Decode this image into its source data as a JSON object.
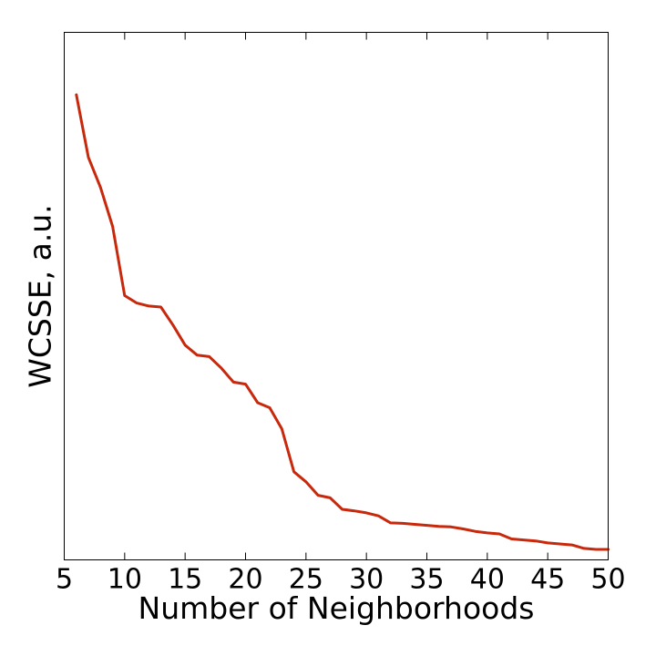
{
  "chart_data": {
    "type": "line",
    "title": "",
    "xlabel": "Number of Neighborhoods",
    "ylabel": "WCSSE, a.u.",
    "xlim": [
      5,
      50
    ],
    "ylim": [
      0,
      1
    ],
    "x_ticks": [
      5,
      10,
      15,
      20,
      25,
      30,
      35,
      40,
      45,
      50
    ],
    "y_ticks": [],
    "y_tick_labels_shown": false,
    "grid": false,
    "legend": "none",
    "line_color": "#c8280b",
    "series": [
      {
        "x": [
          6,
          7,
          8,
          9,
          10,
          11,
          12,
          13,
          14,
          15,
          16,
          17,
          18,
          19,
          20,
          21,
          22,
          23,
          24,
          25,
          26,
          27,
          28,
          29,
          30,
          31,
          32,
          33,
          34,
          35,
          36,
          37,
          38,
          39,
          40,
          41,
          42,
          43,
          44,
          45,
          46,
          47,
          48,
          49,
          50
        ],
        "values": [
          0.88,
          0.755,
          0.695,
          0.617,
          0.479,
          0.464,
          0.458,
          0.456,
          0.42,
          0.38,
          0.36,
          0.357,
          0.334,
          0.306,
          0.302,
          0.265,
          0.255,
          0.213,
          0.127,
          0.107,
          0.08,
          0.075,
          0.052,
          0.049,
          0.045,
          0.039,
          0.025,
          0.024,
          0.022,
          0.02,
          0.018,
          0.017,
          0.013,
          0.008,
          0.005,
          0.003,
          -0.007,
          -0.009,
          -0.011,
          -0.015,
          -0.017,
          -0.019,
          -0.026,
          -0.028,
          -0.028
        ]
      }
    ]
  }
}
